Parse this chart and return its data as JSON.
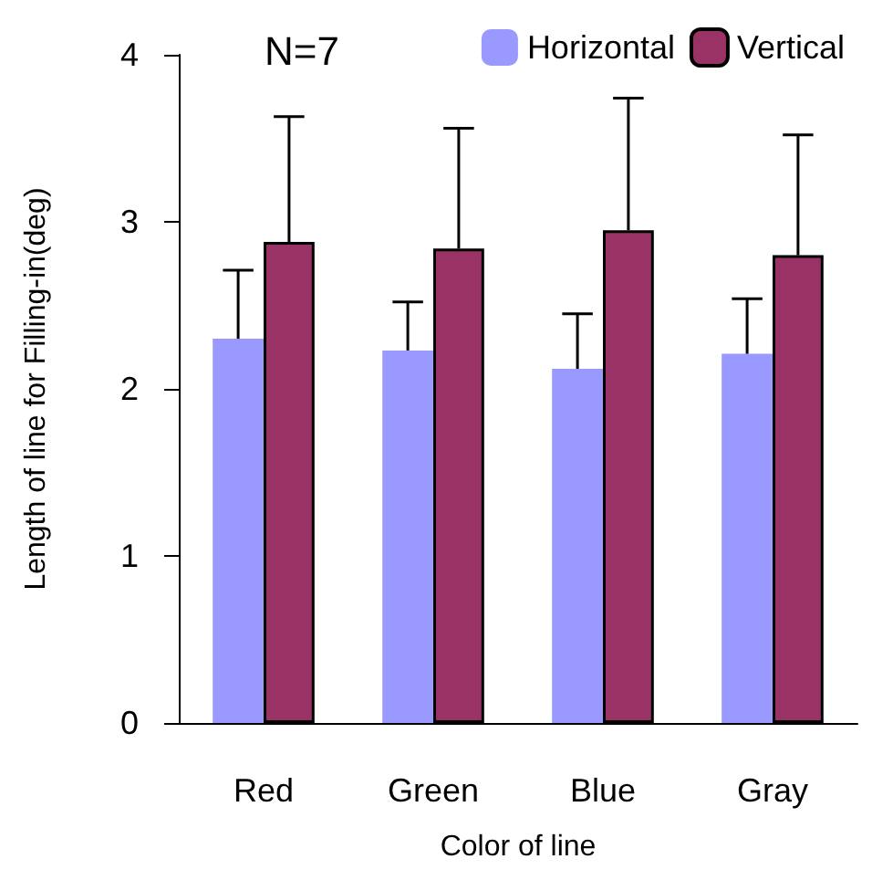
{
  "chart_data": {
    "type": "bar",
    "title": "N=7",
    "xlabel": "Color of line",
    "ylabel": "Length of line for Filling-in(deg)",
    "categories": [
      "Red",
      "Green",
      "Blue",
      "Gray"
    ],
    "series": [
      {
        "name": "Horizontal",
        "color": "#9999ff",
        "values": [
          2.3,
          2.23,
          2.12,
          2.21
        ],
        "errors": [
          [
            2.3,
            2.71
          ],
          [
            2.23,
            2.52
          ],
          [
            2.12,
            2.45
          ],
          [
            2.21,
            2.54
          ]
        ]
      },
      {
        "name": "Vertical",
        "color": "#993366",
        "values": [
          2.88,
          2.84,
          2.95,
          2.8
        ],
        "errors": [
          [
            2.88,
            3.63
          ],
          [
            2.84,
            3.56
          ],
          [
            2.95,
            3.74
          ],
          [
            2.8,
            3.52
          ]
        ]
      }
    ],
    "ylim": [
      0,
      4
    ],
    "yticks": [
      0,
      1,
      2,
      3,
      4
    ],
    "grid": false,
    "legend": "top right"
  }
}
